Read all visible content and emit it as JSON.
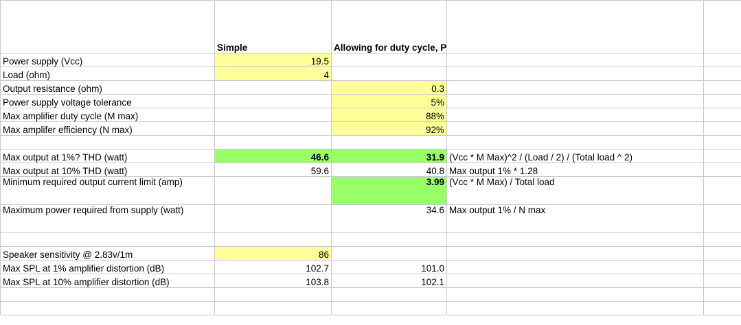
{
  "sheet": {
    "headers": [
      "",
      "Simple",
      "Allowing for duty cycle, PS tolerance and output resistance",
      "",
      ""
    ],
    "rows": [
      {
        "label": "Power supply (Vcc)",
        "simple": "19.5",
        "allowing": "",
        "formula": ""
      },
      {
        "label": "Load (ohm)",
        "simple": "4",
        "allowing": "",
        "formula": ""
      },
      {
        "label": "Output resistance (ohm)",
        "simple": "",
        "allowing": "0.3",
        "formula": ""
      },
      {
        "label": "Power supply voltage tolerance",
        "simple": "",
        "allowing": "5%",
        "formula": ""
      },
      {
        "label": "Max amplifier duty cycle (M max)",
        "simple": "",
        "allowing": "88%",
        "formula": ""
      },
      {
        "label": "Max amplifer efficiency (N max)",
        "simple": "",
        "allowing": "92%",
        "formula": ""
      },
      {
        "label": "",
        "simple": "",
        "allowing": "",
        "formula": ""
      },
      {
        "label": "Max output at 1%? THD (watt)",
        "simple": "46.6",
        "allowing": "31.9",
        "formula": "(Vcc * M Max)^2 / (Load / 2) / (Total load ^ 2)"
      },
      {
        "label": "Max output at 10% THD (watt)",
        "simple": "59.6",
        "allowing": "40.8",
        "formula": "Max output 1% * 1.28"
      },
      {
        "label": "Minimum required output current limit (amp)",
        "simple": "",
        "allowing": "3.99",
        "formula": "(Vcc * M Max) / Total load"
      },
      {
        "label": "Maximum power required from supply (watt)",
        "simple": "",
        "allowing": "34.6",
        "formula": "Max output 1% / N max"
      },
      {
        "label": "",
        "simple": "",
        "allowing": "",
        "formula": ""
      },
      {
        "label": "Speaker sensitivity @ 2.83v/1m",
        "simple": "86",
        "allowing": "",
        "formula": ""
      },
      {
        "label": "Max SPL at 1% amplifier distortion (dB)",
        "simple": "102.7",
        "allowing": "101.0",
        "formula": ""
      },
      {
        "label": "Max SPL at 10% amplifier distortion (dB)",
        "simple": "103.8",
        "allowing": "102.1",
        "formula": ""
      },
      {
        "label": "",
        "simple": "",
        "allowing": "",
        "formula": ""
      },
      {
        "label": "",
        "simple": "",
        "allowing": "",
        "formula": ""
      }
    ]
  },
  "colors": {
    "input_fill": "#ffff99",
    "result_fill": "#99ff66",
    "gridline": "#c8c8c8"
  }
}
